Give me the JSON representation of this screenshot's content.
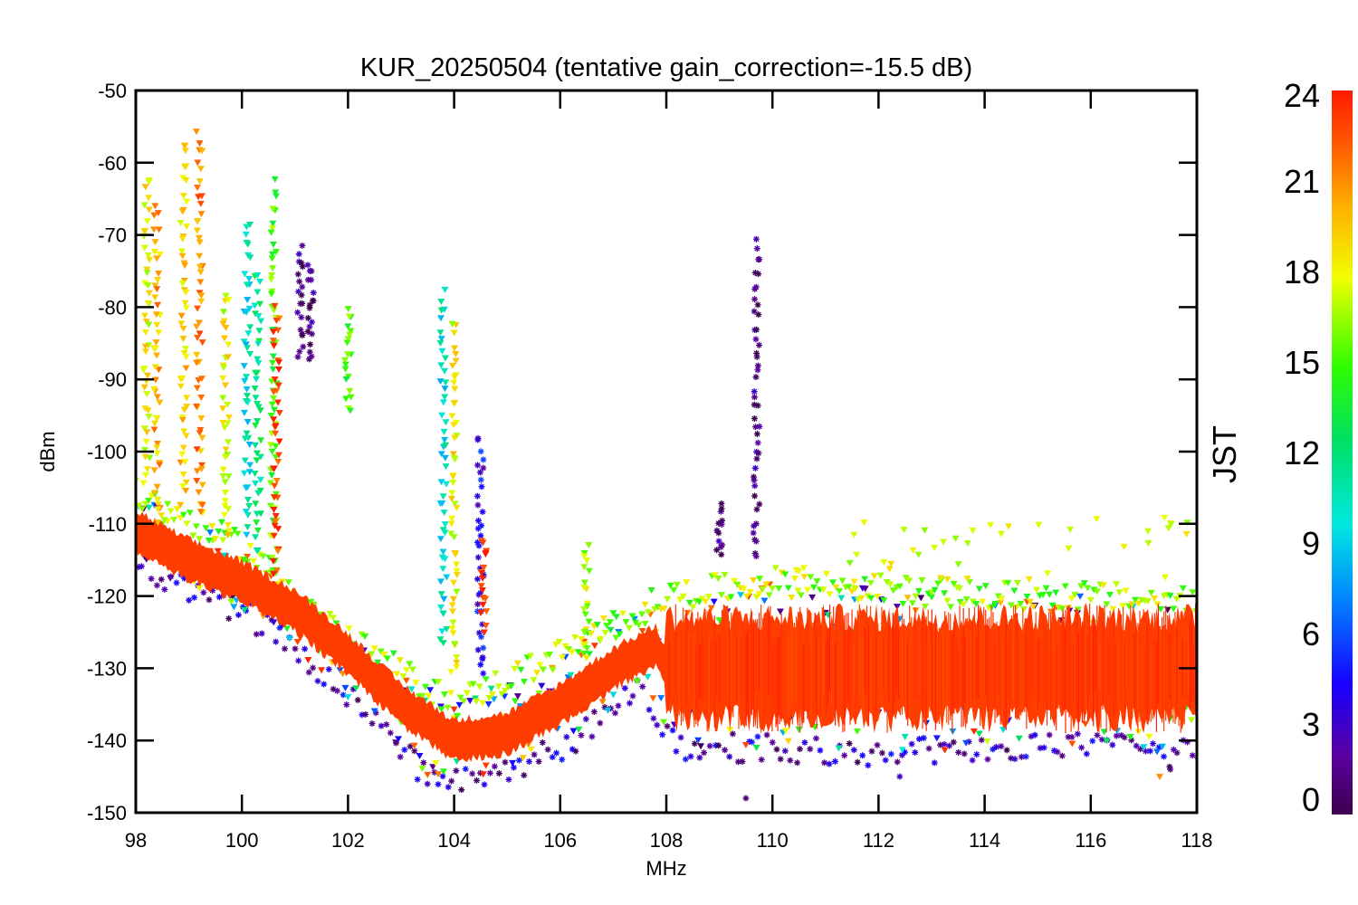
{
  "chart_data": {
    "type": "scatter",
    "title": "KUR_20250504 (tentative gain_correction=-15.5 dB)",
    "xlabel": "MHz",
    "ylabel": "dBm",
    "xlim": [
      98,
      118
    ],
    "ylim": [
      -150,
      -50
    ],
    "xticks": [
      "98",
      "100",
      "102",
      "104",
      "106",
      "108",
      "110",
      "112",
      "114",
      "116",
      "118"
    ],
    "yticks": [
      "-50",
      "-60",
      "-70",
      "-80",
      "-90",
      "-100",
      "-110",
      "-120",
      "-130",
      "-140",
      "-150"
    ],
    "grid": false,
    "colorbar": {
      "label": "JST",
      "range": [
        0,
        24
      ],
      "ticks": [
        "24",
        "21",
        "18",
        "15",
        "12",
        "9",
        "6",
        "3",
        "0"
      ],
      "colormap": "rainbow (purple at 0 to red at 24)"
    },
    "colors": {
      "hour_23": "#ff3300",
      "hour_17": "#9aff00",
      "hour_1": "#4b0082"
    },
    "series": [
      {
        "hour": 23,
        "description": "late-night noise floor (dominant red band)",
        "x": [
          98,
          99,
          100,
          101,
          102,
          103,
          104,
          105,
          106,
          107,
          107.8,
          108,
          110,
          112,
          114,
          116,
          118
        ],
        "y": [
          -111,
          -115,
          -118,
          -122,
          -128,
          -135,
          -140,
          -139,
          -135,
          -130,
          -127,
          -130,
          -130,
          -130,
          -130,
          -130,
          -130
        ]
      },
      {
        "hour": 17,
        "description": "upper envelope of noise (green/yellow)",
        "x": [
          98,
          100,
          102,
          104,
          106,
          108,
          110,
          112,
          114,
          116,
          118
        ],
        "y": [
          -106,
          -113,
          -126,
          -135,
          -128,
          -120,
          -118,
          -119,
          -120,
          -120,
          -121
        ]
      },
      {
        "hour": 1,
        "description": "lower envelope of noise (purple/blue)",
        "x": [
          98,
          100,
          102,
          103.5,
          104.5,
          106,
          107.5,
          108.2,
          110,
          112,
          114,
          116,
          118
        ],
        "y": [
          -116,
          -122,
          -134,
          -145,
          -145,
          -141,
          -133,
          -141,
          -141,
          -142,
          -141,
          -141,
          -142
        ]
      }
    ],
    "spikes": [
      {
        "x": 98.2,
        "top": -62,
        "bottom": -105,
        "hour": 18
      },
      {
        "x": 98.4,
        "top": -66,
        "bottom": -110,
        "hour": 20
      },
      {
        "x": 98.9,
        "top": -57,
        "bottom": -108,
        "hour": 19
      },
      {
        "x": 99.2,
        "top": -56,
        "bottom": -110,
        "hour": 21
      },
      {
        "x": 99.7,
        "top": -78,
        "bottom": -113,
        "hour": 18
      },
      {
        "x": 100.1,
        "top": -68,
        "bottom": -112,
        "hour": 10
      },
      {
        "x": 100.3,
        "top": -75,
        "bottom": -115,
        "hour": 12
      },
      {
        "x": 100.6,
        "top": -63,
        "bottom": -118,
        "hour": 15
      },
      {
        "x": 100.65,
        "top": -80,
        "bottom": -118,
        "hour": 23
      },
      {
        "x": 101.1,
        "top": -72,
        "bottom": -87,
        "hour": 1
      },
      {
        "x": 101.3,
        "top": -74,
        "bottom": -88,
        "hour": 1
      },
      {
        "x": 102.0,
        "top": -80,
        "bottom": -95,
        "hour": 15
      },
      {
        "x": 103.8,
        "top": -78,
        "bottom": -128,
        "hour": 10
      },
      {
        "x": 104.0,
        "top": -82,
        "bottom": -132,
        "hour": 18
      },
      {
        "x": 104.5,
        "top": -98,
        "bottom": -132,
        "hour": 4
      },
      {
        "x": 104.55,
        "top": -112,
        "bottom": -125,
        "hour": 23
      },
      {
        "x": 106.5,
        "top": -113,
        "bottom": -130,
        "hour": 17
      },
      {
        "x": 109.0,
        "top": -107,
        "bottom": -115,
        "hour": 1
      },
      {
        "x": 109.7,
        "top": -71,
        "bottom": -116,
        "hour": 1
      }
    ],
    "outliers": [
      {
        "x": 109.5,
        "y": -148,
        "hour": 1
      },
      {
        "x": 112.4,
        "y": -145,
        "hour": 3
      },
      {
        "x": 117.5,
        "y": -144,
        "hour": 1
      },
      {
        "x": 117.3,
        "y": -145,
        "hour": 21
      }
    ]
  }
}
